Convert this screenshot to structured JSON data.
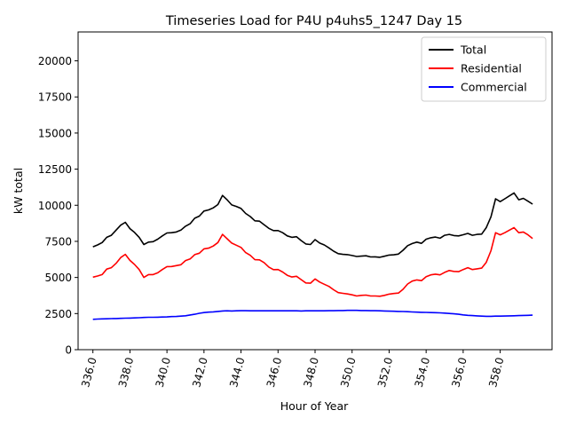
{
  "chart_data": {
    "type": "line",
    "title": "Timeseries Load for P4U p4uhs5_1247  Day 15",
    "xlabel": "Hour of Year",
    "ylabel": "kW total",
    "xlim": [
      335.2,
      360.8
    ],
    "ylim": [
      0,
      22000
    ],
    "xticks": [
      "336.0",
      "338.0",
      "340.0",
      "342.0",
      "344.0",
      "346.0",
      "348.0",
      "350.0",
      "352.0",
      "354.0",
      "356.0",
      "358.0"
    ],
    "xtick_values": [
      336,
      338,
      340,
      342,
      344,
      346,
      348,
      350,
      352,
      354,
      356,
      358
    ],
    "yticks": [
      "0",
      "2500",
      "5000",
      "7500",
      "10000",
      "12500",
      "15000",
      "17500",
      "20000"
    ],
    "ytick_values": [
      0,
      2500,
      5000,
      7500,
      10000,
      12500,
      15000,
      17500,
      20000
    ],
    "legend_position": "top-right",
    "grid": false,
    "x": [
      336.0,
      336.25,
      336.5,
      336.75,
      337.0,
      337.25,
      337.5,
      337.75,
      338.0,
      338.25,
      338.5,
      338.75,
      339.0,
      339.25,
      339.5,
      339.75,
      340.0,
      340.25,
      340.5,
      340.75,
      341.0,
      341.25,
      341.5,
      341.75,
      342.0,
      342.25,
      342.5,
      342.75,
      343.0,
      343.25,
      343.5,
      343.75,
      344.0,
      344.25,
      344.5,
      344.75,
      345.0,
      345.25,
      345.5,
      345.75,
      346.0,
      346.25,
      346.5,
      346.75,
      347.0,
      347.25,
      347.5,
      347.75,
      348.0,
      348.25,
      348.5,
      348.75,
      349.0,
      349.25,
      349.5,
      349.75,
      350.0,
      350.25,
      350.5,
      350.75,
      351.0,
      351.25,
      351.5,
      351.75,
      352.0,
      352.25,
      352.5,
      352.75,
      353.0,
      353.25,
      353.5,
      353.75,
      354.0,
      354.25,
      354.5,
      354.75,
      355.0,
      355.25,
      355.5,
      355.75,
      356.0,
      356.25,
      356.5,
      356.75,
      357.0,
      357.25,
      357.5,
      357.75,
      358.0,
      358.25,
      358.5,
      358.75,
      359.0,
      359.25,
      359.5,
      359.75
    ],
    "series": [
      {
        "name": "Total",
        "color": "#000000",
        "values": [
          7120,
          7250,
          7420,
          7780,
          7920,
          8280,
          8620,
          8820,
          8380,
          8120,
          7780,
          7280,
          7450,
          7480,
          7650,
          7880,
          8080,
          8100,
          8150,
          8280,
          8550,
          8720,
          9100,
          9250,
          9600,
          9680,
          9820,
          10050,
          10680,
          10380,
          10020,
          9920,
          9780,
          9430,
          9220,
          8920,
          8900,
          8650,
          8400,
          8250,
          8250,
          8100,
          7880,
          7780,
          7820,
          7550,
          7320,
          7280,
          7620,
          7380,
          7250,
          7050,
          6820,
          6650,
          6600,
          6580,
          6520,
          6450,
          6480,
          6500,
          6420,
          6430,
          6400,
          6470,
          6550,
          6570,
          6620,
          6880,
          7200,
          7350,
          7450,
          7360,
          7650,
          7750,
          7800,
          7720,
          7920,
          7980,
          7900,
          7880,
          7960,
          8050,
          7920,
          7980,
          8000,
          8450,
          9200,
          10450,
          10250,
          10450,
          10650,
          10850,
          10380,
          10480,
          10280,
          10080
        ]
      },
      {
        "name": "Residential",
        "color": "#ff0000",
        "values": [
          5020,
          5100,
          5200,
          5580,
          5680,
          5980,
          6380,
          6600,
          6180,
          5900,
          5550,
          5000,
          5200,
          5200,
          5320,
          5550,
          5750,
          5760,
          5820,
          5880,
          6170,
          6280,
          6580,
          6680,
          6980,
          7030,
          7180,
          7420,
          7980,
          7680,
          7380,
          7230,
          7080,
          6720,
          6530,
          6230,
          6220,
          6030,
          5720,
          5540,
          5550,
          5380,
          5150,
          5030,
          5080,
          4850,
          4620,
          4600,
          4900,
          4680,
          4530,
          4380,
          4150,
          3950,
          3900,
          3860,
          3800,
          3720,
          3760,
          3780,
          3720,
          3720,
          3700,
          3760,
          3850,
          3890,
          3920,
          4180,
          4550,
          4750,
          4830,
          4780,
          5050,
          5180,
          5230,
          5180,
          5350,
          5480,
          5420,
          5400,
          5550,
          5680,
          5550,
          5600,
          5650,
          6050,
          6850,
          8100,
          7950,
          8100,
          8280,
          8450,
          8100,
          8150,
          7950,
          7700
        ]
      },
      {
        "name": "Commercial",
        "color": "#0000ff",
        "values": [
          2100,
          2120,
          2130,
          2140,
          2150,
          2160,
          2170,
          2180,
          2190,
          2200,
          2210,
          2230,
          2240,
          2240,
          2250,
          2260,
          2270,
          2290,
          2300,
          2320,
          2350,
          2400,
          2450,
          2520,
          2570,
          2600,
          2620,
          2650,
          2680,
          2690,
          2680,
          2690,
          2700,
          2700,
          2690,
          2690,
          2690,
          2690,
          2690,
          2690,
          2690,
          2690,
          2690,
          2690,
          2690,
          2680,
          2690,
          2690,
          2690,
          2690,
          2690,
          2700,
          2700,
          2710,
          2710,
          2720,
          2720,
          2720,
          2710,
          2710,
          2700,
          2700,
          2690,
          2680,
          2670,
          2660,
          2650,
          2640,
          2630,
          2610,
          2600,
          2590,
          2580,
          2570,
          2560,
          2550,
          2530,
          2510,
          2480,
          2450,
          2410,
          2380,
          2360,
          2340,
          2320,
          2310,
          2310,
          2320,
          2320,
          2330,
          2340,
          2350,
          2360,
          2370,
          2380,
          2390
        ]
      }
    ]
  }
}
